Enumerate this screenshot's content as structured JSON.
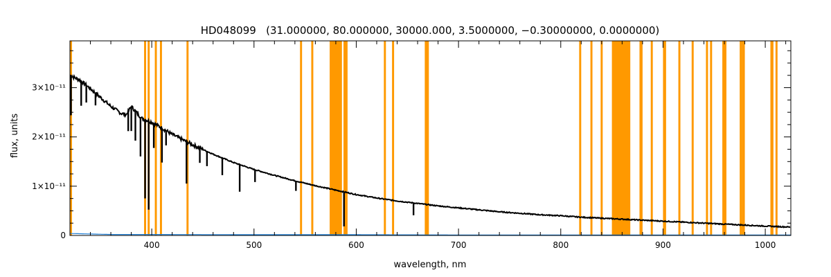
{
  "chart_data": {
    "type": "line",
    "title": "HD048099   (31.000000, 80.000000, 30000.000, 3.5000000, −0.30000000, 0.0000000)",
    "xlabel": "wavelength, nm",
    "ylabel": "flux, units",
    "xlim": [
      320,
      1025
    ],
    "ylim": [
      0,
      3.95e-11
    ],
    "x_ticks": [
      400,
      500,
      600,
      700,
      800,
      900,
      1000
    ],
    "y_ticks": [
      {
        "value": 0,
        "label": "0"
      },
      {
        "value": 1e-11,
        "label": "1×10⁻¹¹"
      },
      {
        "value": 2e-11,
        "label": "2×10⁻¹¹"
      },
      {
        "value": 3e-11,
        "label": "3×10⁻¹¹"
      }
    ],
    "grid": false,
    "colors": {
      "flux": "#000000",
      "error": "#1f7fd6",
      "masked": "#ff9900"
    },
    "masked_bands": [
      [
        320,
        322
      ],
      [
        392.5,
        394.5
      ],
      [
        396,
        398
      ],
      [
        403,
        405
      ],
      [
        408,
        410
      ],
      [
        434,
        436
      ],
      [
        545,
        547
      ],
      [
        556,
        558
      ],
      [
        574,
        586
      ],
      [
        587.5,
        591.5
      ],
      [
        627,
        629
      ],
      [
        635,
        637
      ],
      [
        667,
        671
      ],
      [
        818,
        820
      ],
      [
        829,
        831
      ],
      [
        839,
        841
      ],
      [
        850,
        868
      ],
      [
        877,
        880
      ],
      [
        888,
        890
      ],
      [
        900,
        903
      ],
      [
        915,
        917
      ],
      [
        928,
        930
      ],
      [
        942,
        944
      ],
      [
        946,
        948
      ],
      [
        958,
        962
      ],
      [
        975,
        977
      ],
      [
        977,
        980
      ],
      [
        1005,
        1008
      ],
      [
        1010,
        1012
      ]
    ],
    "series": [
      {
        "key": "flux",
        "x": [
          320,
          330,
          340,
          350,
          360,
          370,
          375,
          380,
          385,
          390,
          400,
          410,
          420,
          440,
          460,
          480,
          500,
          520,
          540,
          560,
          580,
          600,
          620,
          640,
          660,
          680,
          700,
          720,
          740,
          760,
          780,
          800,
          820,
          840,
          860,
          880,
          900,
          920,
          940,
          960,
          980,
          1000,
          1025
        ],
        "y": [
          3.25e-11,
          3.15e-11,
          2.98e-11,
          2.8e-11,
          2.62e-11,
          2.48e-11,
          2.45e-11,
          2.62e-11,
          2.5e-11,
          2.38e-11,
          2.3e-11,
          2.18e-11,
          2.05e-11,
          1.84e-11,
          1.65e-11,
          1.48e-11,
          1.34e-11,
          1.22e-11,
          1.11e-11,
          1.01e-11,
          9.2e-12,
          8.3e-12,
          7.6e-12,
          7e-12,
          6.5e-12,
          6e-12,
          5.6e-12,
          5.2e-12,
          4.8e-12,
          4.5e-12,
          4.2e-12,
          4e-12,
          3.7e-12,
          3.5e-12,
          3.3e-12,
          3.1e-12,
          2.9e-12,
          2.7e-12,
          2.5e-12,
          2.3e-12,
          2.1e-12,
          1.9e-12,
          1.7e-12
        ]
      },
      {
        "key": "error",
        "x": [
          320,
          340,
          360,
          400,
          500,
          600,
          700,
          800,
          900,
          1000,
          1025
        ],
        "y": [
          4e-13,
          3e-13,
          2e-13,
          2e-13,
          1.5e-13,
          1.5e-13,
          1e-13,
          1e-13,
          1e-13,
          1e-13,
          1e-13
        ]
      }
    ],
    "absorption_lines": [
      {
        "x": 321,
        "depth": 8e-12
      },
      {
        "x": 331,
        "depth": 5e-12
      },
      {
        "x": 336,
        "depth": 3.5e-12
      },
      {
        "x": 345,
        "depth": 2.5e-12
      },
      {
        "x": 377,
        "depth": 4e-12
      },
      {
        "x": 380,
        "depth": 5e-12
      },
      {
        "x": 384,
        "depth": 6e-12
      },
      {
        "x": 389,
        "depth": 8e-12
      },
      {
        "x": 393.5,
        "depth": 1.6e-11
      },
      {
        "x": 397,
        "depth": 1.8e-11
      },
      {
        "x": 402,
        "depth": 5e-12
      },
      {
        "x": 410,
        "depth": 7e-12
      },
      {
        "x": 414,
        "depth": 3e-12
      },
      {
        "x": 434,
        "depth": 8.5e-12
      },
      {
        "x": 447,
        "depth": 3e-12
      },
      {
        "x": 454,
        "depth": 3e-12
      },
      {
        "x": 469,
        "depth": 3.5e-12
      },
      {
        "x": 486,
        "depth": 5.5e-12
      },
      {
        "x": 501,
        "depth": 2.5e-12
      },
      {
        "x": 541,
        "depth": 2e-12
      },
      {
        "x": 588,
        "depth": 7e-12
      },
      {
        "x": 656,
        "depth": 2.5e-12
      }
    ]
  }
}
